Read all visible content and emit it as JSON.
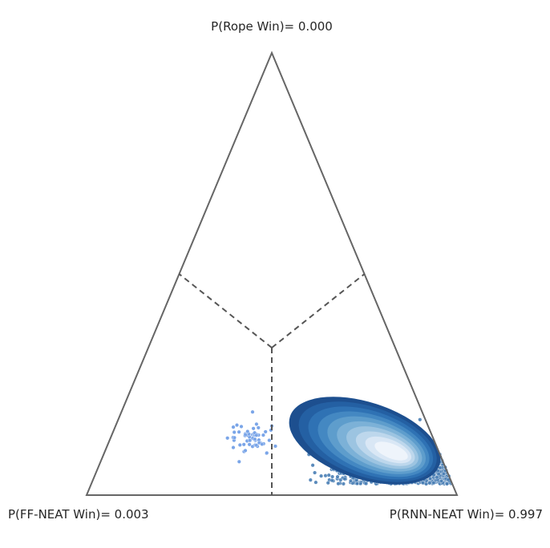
{
  "chart_data": {
    "type": "scatter",
    "subtype": "ternary-simplex",
    "vertex_labels": {
      "top": "P(Rope Win)= 0.000",
      "left": "P(FF-NEAT Win)= 0.003",
      "right": "P(RNN-NEAT Win)= 0.997"
    },
    "probabilities": {
      "rope": 0.0,
      "ff_neat": 0.003,
      "rnn_neat": 0.997
    },
    "region_boundaries": "dashed lines from centroid to edge midpoints",
    "scatter": {
      "description": "posterior samples (bary coords: ff, rope, rnn)",
      "approx_center": [
        0.1,
        0.05,
        0.85
      ],
      "spread": [
        0.08,
        0.04
      ],
      "point_colors": {
        "ff_region": "#7aa5e8",
        "rnn_region": "#4a7fb5"
      }
    },
    "density_levels": [
      "#1d4f8f",
      "#2460a3",
      "#2f72b4",
      "#4488c2",
      "#5e9dcc",
      "#7cb1d7",
      "#9cc4e1",
      "#bdd7ec",
      "#d9e7f5",
      "#eef4fb"
    ],
    "colors": {
      "frame": "#666666",
      "dashed": "#555555"
    }
  }
}
